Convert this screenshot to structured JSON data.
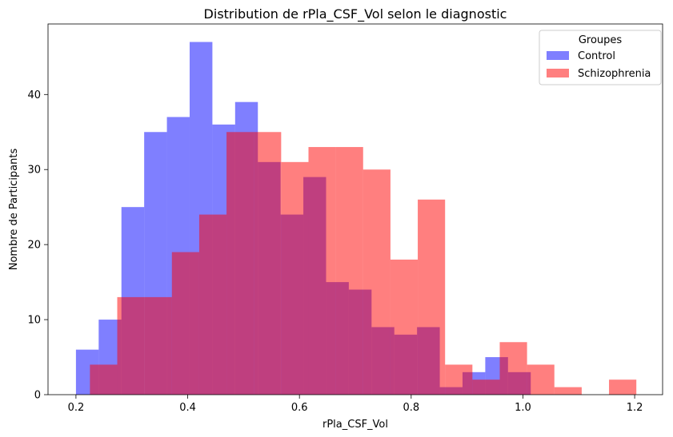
{
  "chart_data": {
    "type": "bar",
    "title": "Distribution de rPla_CSF_Vol selon le diagnostic",
    "xlabel": "rPla_CSF_Vol",
    "ylabel": "Nombre de Participants",
    "xlim": [
      0.15,
      1.25
    ],
    "ylim": [
      0,
      49.4
    ],
    "xticks": [
      "0.2",
      "0.4",
      "0.6",
      "0.8",
      "1.0",
      "1.2"
    ],
    "yticks": [
      "0",
      "10",
      "20",
      "30",
      "40"
    ],
    "grid": false,
    "legend": {
      "title": "Groupes",
      "placement": "top-right"
    },
    "series": [
      {
        "name": "Control",
        "color": "#0000ff",
        "opacity": 0.5,
        "bin_edges": [
          0.2,
          0.2407,
          0.2814,
          0.3221,
          0.3628,
          0.4035,
          0.4442,
          0.4849,
          0.5256,
          0.5663,
          0.607,
          0.6477,
          0.6884,
          0.7291,
          0.7698,
          0.8105,
          0.8512,
          0.8919,
          0.9326,
          0.9733,
          1.014
        ],
        "counts": [
          6,
          10,
          25,
          35,
          37,
          47,
          36,
          39,
          31,
          24,
          29,
          15,
          14,
          9,
          8,
          9,
          1,
          3,
          5,
          3
        ]
      },
      {
        "name": "Schizophrenia",
        "color": "#ff0000",
        "opacity": 0.5,
        "bin_edges": [
          0.225,
          0.2739,
          0.3228,
          0.3717,
          0.4206,
          0.4695,
          0.5184,
          0.5673,
          0.6162,
          0.6651,
          0.714,
          0.7629,
          0.8118,
          0.8607,
          0.9096,
          0.9585,
          1.0074,
          1.0563,
          1.1052,
          1.1541,
          1.203
        ],
        "counts": [
          4,
          13,
          13,
          19,
          24,
          35,
          35,
          31,
          33,
          33,
          30,
          18,
          26,
          4,
          2,
          7,
          4,
          1,
          0,
          2
        ]
      }
    ]
  }
}
